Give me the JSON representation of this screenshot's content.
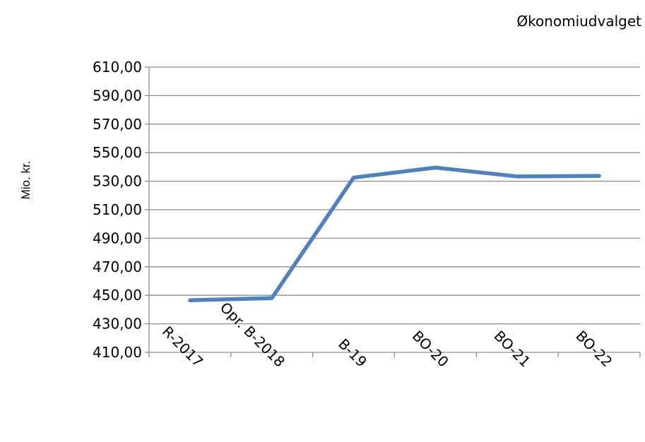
{
  "chart_data": {
    "type": "line",
    "title": "Økonomiudvalget",
    "ylabel": "Mio. kr.",
    "xlabel": "",
    "categories": [
      "R-2017",
      "Opr. B-2018",
      "B-19",
      "BO-20",
      "BO-21",
      "BO-22"
    ],
    "series": [
      {
        "values": [
          446.5,
          448.0,
          532.5,
          539.5,
          533.3,
          533.7
        ],
        "color": "#4f81bd"
      }
    ],
    "ylim": [
      410,
      610
    ],
    "yticks": [
      410,
      430,
      450,
      470,
      490,
      510,
      530,
      550,
      570,
      590,
      610
    ],
    "ytick_labels": [
      "410,00",
      "430,00",
      "450,00",
      "470,00",
      "490,00",
      "510,00",
      "530,00",
      "550,00",
      "570,00",
      "590,00",
      "610,00"
    ],
    "grid": true,
    "legend": "none"
  }
}
